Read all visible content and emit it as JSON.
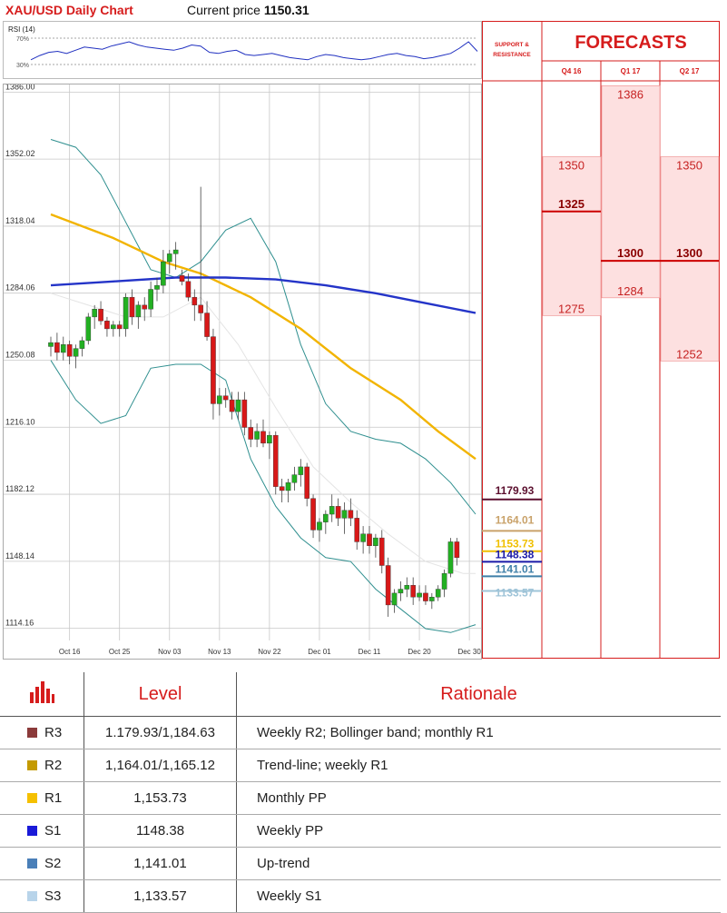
{
  "header": {
    "title": "XAU/USD Daily Chart",
    "price_label": "Current price",
    "price_value": "1150.31"
  },
  "rsi": {
    "label": "RSI (14)",
    "level_70": "70%",
    "level_30": "30%"
  },
  "forecast": {
    "support_label_1": "SUPPORT &",
    "support_label_2": "RESISTANCE",
    "title": "FORECASTS",
    "columns": [
      "Q4 16",
      "Q1 17",
      "Q2 17"
    ]
  },
  "chart_data": {
    "type": "candlestick",
    "title": "XAU/USD Daily Chart",
    "current_price": 1150.31,
    "ylim": [
      1108,
      1388
    ],
    "y_ticks": [
      1386.0,
      1352.02,
      1318.04,
      1284.06,
      1250.08,
      1216.1,
      1182.12,
      1148.14,
      1114.16
    ],
    "y_tick_labels": [
      "1386.00",
      "1352.02",
      "1318.04",
      "1284.06",
      "1250.08",
      "1216.10",
      "1182.12",
      "1148.14",
      "1114.16"
    ],
    "x_tick_labels": [
      "Oct 16",
      "Oct 25",
      "Nov 03",
      "Nov 13",
      "Nov 22",
      "Dec 01",
      "Dec 11",
      "Dec 20",
      "Dec 30"
    ],
    "x_tick_index": [
      3,
      11,
      19,
      27,
      35,
      43,
      51,
      59,
      67
    ],
    "candles": [
      [
        1257,
        1262,
        1252,
        1259
      ],
      [
        1259,
        1264,
        1250,
        1254
      ],
      [
        1254,
        1262,
        1250,
        1258
      ],
      [
        1258,
        1260,
        1248,
        1252
      ],
      [
        1252,
        1258,
        1246,
        1256
      ],
      [
        1256,
        1262,
        1252,
        1260
      ],
      [
        1260,
        1274,
        1258,
        1272
      ],
      [
        1272,
        1278,
        1266,
        1276
      ],
      [
        1276,
        1280,
        1268,
        1270
      ],
      [
        1270,
        1272,
        1262,
        1266
      ],
      [
        1266,
        1270,
        1262,
        1268
      ],
      [
        1268,
        1270,
        1262,
        1266
      ],
      [
        1266,
        1284,
        1262,
        1282
      ],
      [
        1282,
        1286,
        1268,
        1272
      ],
      [
        1272,
        1280,
        1266,
        1278
      ],
      [
        1278,
        1282,
        1270,
        1276
      ],
      [
        1276,
        1290,
        1272,
        1286
      ],
      [
        1286,
        1292,
        1280,
        1288
      ],
      [
        1288,
        1306,
        1284,
        1300
      ],
      [
        1300,
        1306,
        1294,
        1304
      ],
      [
        1304,
        1310,
        1296,
        1306
      ],
      [
        1293,
        1296,
        1288,
        1290
      ],
      [
        1290,
        1294,
        1280,
        1282
      ],
      [
        1282,
        1286,
        1270,
        1278
      ],
      [
        1278,
        1338,
        1270,
        1274
      ],
      [
        1274,
        1280,
        1260,
        1262
      ],
      [
        1262,
        1266,
        1220,
        1228
      ],
      [
        1228,
        1236,
        1222,
        1232
      ],
      [
        1232,
        1236,
        1226,
        1230
      ],
      [
        1230,
        1234,
        1220,
        1224
      ],
      [
        1224,
        1234,
        1220,
        1230
      ],
      [
        1230,
        1234,
        1212,
        1216
      ],
      [
        1216,
        1220,
        1206,
        1210
      ],
      [
        1210,
        1218,
        1206,
        1214
      ],
      [
        1214,
        1220,
        1206,
        1208
      ],
      [
        1208,
        1214,
        1200,
        1212
      ],
      [
        1212,
        1214,
        1182,
        1186
      ],
      [
        1186,
        1190,
        1178,
        1184
      ],
      [
        1184,
        1190,
        1178,
        1188
      ],
      [
        1188,
        1196,
        1184,
        1192
      ],
      [
        1192,
        1200,
        1186,
        1196
      ],
      [
        1196,
        1198,
        1176,
        1180
      ],
      [
        1180,
        1182,
        1160,
        1164
      ],
      [
        1164,
        1170,
        1158,
        1168
      ],
      [
        1168,
        1174,
        1162,
        1172
      ],
      [
        1172,
        1182,
        1168,
        1176
      ],
      [
        1176,
        1180,
        1166,
        1170
      ],
      [
        1170,
        1178,
        1162,
        1174
      ],
      [
        1174,
        1180,
        1166,
        1170
      ],
      [
        1170,
        1174,
        1154,
        1158
      ],
      [
        1158,
        1166,
        1152,
        1162
      ],
      [
        1162,
        1166,
        1152,
        1156
      ],
      [
        1156,
        1162,
        1150,
        1160
      ],
      [
        1160,
        1164,
        1142,
        1146
      ],
      [
        1146,
        1150,
        1120,
        1126
      ],
      [
        1126,
        1134,
        1122,
        1132
      ],
      [
        1132,
        1138,
        1128,
        1134
      ],
      [
        1134,
        1140,
        1130,
        1136
      ],
      [
        1136,
        1140,
        1126,
        1130
      ],
      [
        1130,
        1136,
        1128,
        1132
      ],
      [
        1132,
        1136,
        1126,
        1128
      ],
      [
        1128,
        1132,
        1124,
        1130
      ],
      [
        1130,
        1136,
        1128,
        1134
      ],
      [
        1134,
        1144,
        1130,
        1142
      ],
      [
        1142,
        1160,
        1140,
        1158
      ],
      [
        1158,
        1160,
        1146,
        1150
      ]
    ],
    "ma_yellow": [
      [
        0,
        1324
      ],
      [
        10,
        1312
      ],
      [
        18,
        1300
      ],
      [
        24,
        1294
      ],
      [
        32,
        1282
      ],
      [
        40,
        1266
      ],
      [
        48,
        1246
      ],
      [
        56,
        1230
      ],
      [
        62,
        1214
      ],
      [
        68,
        1200
      ]
    ],
    "ma_blue": [
      [
        0,
        1288
      ],
      [
        10,
        1290
      ],
      [
        20,
        1292
      ],
      [
        28,
        1292
      ],
      [
        36,
        1291
      ],
      [
        44,
        1288
      ],
      [
        52,
        1284
      ],
      [
        60,
        1279
      ],
      [
        68,
        1274
      ]
    ],
    "bb_upper": [
      [
        0,
        1362
      ],
      [
        4,
        1358
      ],
      [
        8,
        1344
      ],
      [
        12,
        1320
      ],
      [
        16,
        1296
      ],
      [
        20,
        1292
      ],
      [
        24,
        1300
      ],
      [
        28,
        1316
      ],
      [
        32,
        1322
      ],
      [
        36,
        1300
      ],
      [
        40,
        1258
      ],
      [
        44,
        1228
      ],
      [
        48,
        1214
      ],
      [
        52,
        1210
      ],
      [
        56,
        1208
      ],
      [
        60,
        1200
      ],
      [
        64,
        1188
      ],
      [
        68,
        1172
      ]
    ],
    "bb_middle": [
      [
        0,
        1284
      ],
      [
        6,
        1278
      ],
      [
        12,
        1272
      ],
      [
        18,
        1272
      ],
      [
        24,
        1282
      ],
      [
        30,
        1258
      ],
      [
        36,
        1226
      ],
      [
        42,
        1196
      ],
      [
        48,
        1178
      ],
      [
        54,
        1162
      ],
      [
        60,
        1148
      ],
      [
        66,
        1142
      ],
      [
        68,
        1142
      ]
    ],
    "bb_lower": [
      [
        0,
        1250
      ],
      [
        4,
        1230
      ],
      [
        8,
        1218
      ],
      [
        12,
        1222
      ],
      [
        16,
        1246
      ],
      [
        20,
        1248
      ],
      [
        24,
        1248
      ],
      [
        28,
        1240
      ],
      [
        32,
        1200
      ],
      [
        36,
        1176
      ],
      [
        40,
        1160
      ],
      [
        44,
        1150
      ],
      [
        48,
        1148
      ],
      [
        52,
        1134
      ],
      [
        56,
        1124
      ],
      [
        60,
        1114
      ],
      [
        64,
        1112
      ],
      [
        68,
        1116
      ]
    ],
    "rsi_values": [
      28,
      36,
      42,
      44,
      40,
      46,
      52,
      50,
      48,
      54,
      58,
      62,
      56,
      52,
      50,
      48,
      46,
      50,
      56,
      54,
      42,
      40,
      44,
      46,
      38,
      36,
      38,
      40,
      36,
      32,
      30,
      28,
      34,
      38,
      36,
      32,
      30,
      28,
      30,
      34,
      38,
      40,
      36,
      34,
      30,
      32,
      36,
      40,
      50,
      62,
      44
    ],
    "levels": [
      {
        "label": "1179.93",
        "value": 1179.93,
        "color": "#5b0f2e"
      },
      {
        "label": "1164.01",
        "value": 1164.01,
        "color": "#c9a26a"
      },
      {
        "label": "1153.73",
        "value": 1153.73,
        "color": "#f0c000"
      },
      {
        "label": "1148.38",
        "value": 1148.38,
        "color": "#1a1aa8"
      },
      {
        "label": "1141.01",
        "value": 1141.01,
        "color": "#3f7fa8"
      },
      {
        "label": "1133.57",
        "value": 1133.57,
        "color": "#9fc4d8"
      }
    ],
    "forecasts": {
      "columns": [
        "Q4 16",
        "Q1 17",
        "Q2 17"
      ],
      "q4_16": {
        "high": 1350,
        "mid": 1325,
        "low": 1275
      },
      "q1_17": {
        "high": 1386,
        "mid": 1300,
        "low": 1284
      },
      "q2_17": {
        "high": 1350,
        "mid": 1300,
        "low": 1252
      }
    }
  },
  "table": {
    "col_level": "Level",
    "col_rationale": "Rationale",
    "rows": [
      {
        "code": "R3",
        "color": "#8b3a3a",
        "level": "1.179.93/1,184.63",
        "rationale": "Weekly R2; Bollinger band; monthly R1"
      },
      {
        "code": "R2",
        "color": "#c49a00",
        "level": "1,164.01/1,165.12",
        "rationale": "Trend-line; weekly R1"
      },
      {
        "code": "R1",
        "color": "#f5c000",
        "level": "1,153.73",
        "rationale": "Monthly PP"
      },
      {
        "code": "S1",
        "color": "#1a1ad8",
        "level": "1148.38",
        "rationale": "Weekly PP"
      },
      {
        "code": "S2",
        "color": "#4a7fb8",
        "level": "1,141.01",
        "rationale": "Up-trend"
      },
      {
        "code": "S3",
        "color": "#b8d4ea",
        "level": "1,133.57",
        "rationale": "Weekly S1"
      }
    ]
  }
}
